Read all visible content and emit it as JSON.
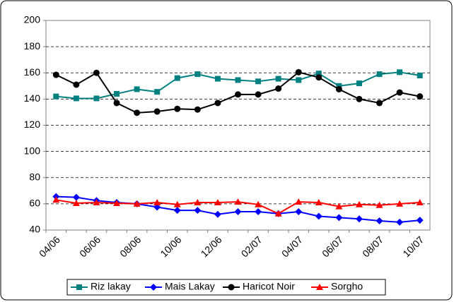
{
  "chart_data": {
    "type": "line",
    "categories": [
      "04/06",
      null,
      "06/06",
      null,
      "08/06",
      null,
      "10/06",
      null,
      "12/06",
      null,
      "02/07",
      null,
      "04/07",
      null,
      "06/07",
      null,
      "08/07",
      null,
      "10/07"
    ],
    "series": [
      {
        "name": "Riz lakay",
        "color": "#008080",
        "marker": "square",
        "values": [
          142,
          140.5,
          140.5,
          144,
          147.5,
          145.5,
          156,
          159,
          155.5,
          154.5,
          153.5,
          155.5,
          154.5,
          159.5,
          150,
          152,
          159,
          160.5,
          158
        ]
      },
      {
        "name": "Mais Lakay",
        "color": "#0000ff",
        "marker": "diamond",
        "values": [
          65.5,
          65,
          62.5,
          61,
          60,
          57.5,
          55,
          55,
          52,
          54,
          54,
          52.5,
          54,
          50.5,
          49.5,
          48.5,
          47,
          46,
          47.5
        ]
      },
      {
        "name": "Haricot Noir",
        "color": "#000000",
        "marker": "circle",
        "values": [
          158.5,
          151,
          160,
          137,
          129.5,
          130.5,
          132.5,
          132,
          137,
          143.5,
          143.5,
          148,
          160.5,
          156.5,
          147.5,
          140,
          137,
          145,
          142
        ]
      },
      {
        "name": "Sorgho",
        "color": "#ff0000",
        "marker": "triangle",
        "values": [
          63,
          60.5,
          61,
          60.5,
          60,
          61,
          59.5,
          61,
          61,
          61.5,
          59.5,
          52.5,
          61.5,
          61,
          58,
          59.5,
          59,
          60,
          61
        ]
      }
    ],
    "ylim": [
      40,
      200
    ],
    "yticks": [
      40,
      60,
      80,
      100,
      120,
      140,
      160,
      180,
      200
    ],
    "grid": true,
    "legend": "bottom"
  }
}
